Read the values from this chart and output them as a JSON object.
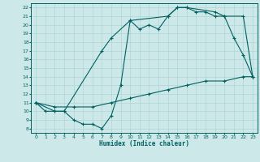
{
  "xlabel": "Humidex (Indice chaleur)",
  "xlim": [
    -0.5,
    23.5
  ],
  "ylim": [
    7.5,
    22.5
  ],
  "xticks": [
    0,
    1,
    2,
    3,
    4,
    5,
    6,
    7,
    8,
    9,
    10,
    11,
    12,
    13,
    14,
    15,
    16,
    17,
    18,
    19,
    20,
    21,
    22,
    23
  ],
  "yticks": [
    8,
    9,
    10,
    11,
    12,
    13,
    14,
    15,
    16,
    17,
    18,
    19,
    20,
    21,
    22
  ],
  "bg_color": "#cde8e8",
  "grid_color": "#b0d4d4",
  "line_color": "#006060",
  "line1_x": [
    0,
    1,
    2,
    3,
    4,
    5,
    6,
    7,
    8,
    9,
    10,
    11,
    12,
    13,
    14,
    15,
    16,
    17,
    18,
    19,
    20,
    21,
    22,
    23
  ],
  "line1_y": [
    11,
    10,
    10,
    10,
    9,
    8.5,
    8.5,
    8,
    9.5,
    13,
    20.5,
    19.5,
    20,
    19.5,
    21,
    22,
    22,
    21.5,
    21.5,
    21,
    21,
    18.5,
    16.5,
    14
  ],
  "line2_x": [
    0,
    2,
    3,
    7,
    8,
    10,
    14,
    15,
    16,
    19,
    20,
    22,
    23
  ],
  "line2_y": [
    11,
    10,
    10,
    17,
    18.5,
    20.5,
    21,
    22,
    22,
    21.5,
    21,
    21,
    14
  ],
  "line3_x": [
    0,
    2,
    4,
    6,
    8,
    10,
    12,
    14,
    16,
    18,
    20,
    22,
    23
  ],
  "line3_y": [
    11,
    10.5,
    10.5,
    10.5,
    11,
    11.5,
    12,
    12.5,
    13,
    13.5,
    13.5,
    14,
    14
  ]
}
